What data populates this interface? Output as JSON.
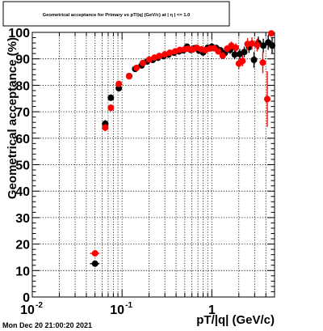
{
  "chart_data": {
    "type": "scatter",
    "title": "Geometrical acceptance for Primary vs pT/|q| (GeV/c) at | η | <= 1.0",
    "xlabel": "pT/|q| (GeV/c)",
    "ylabel": "Geometrical acceptance (%)",
    "x_scale": "log",
    "xlim": [
      0.01,
      5.0
    ],
    "ylim": [
      0,
      100
    ],
    "x_ticks": [
      {
        "value": 0.01,
        "label": "10",
        "exp": "-2"
      },
      {
        "value": 0.1,
        "label": "10",
        "exp": "-1"
      },
      {
        "value": 1,
        "label": "1",
        "exp": ""
      }
    ],
    "y_ticks": [
      "0",
      "10",
      "20",
      "30",
      "40",
      "50",
      "60",
      "70",
      "80",
      "90",
      "100"
    ],
    "grid": true,
    "series": [
      {
        "color": "#000000",
        "points": [
          {
            "x": 0.05,
            "y": 12.6,
            "xerr": 0.006,
            "yerr": 0.9
          },
          {
            "x": 0.065,
            "y": 65.5,
            "xerr": 0.003,
            "yerr": 1.4
          },
          {
            "x": 0.075,
            "y": 75.3,
            "xerr": 0.003,
            "yerr": 1.2
          },
          {
            "x": 0.092,
            "y": 78.9,
            "xerr": 0.004,
            "yerr": 1.0
          },
          {
            "x": 0.12,
            "y": 83.5,
            "yerr": 0.8
          },
          {
            "x": 0.14,
            "y": 86.2,
            "yerr": 0.8
          },
          {
            "x": 0.165,
            "y": 87.5,
            "yerr": 0.8
          },
          {
            "x": 0.19,
            "y": 89.0,
            "yerr": 0.7
          },
          {
            "x": 0.22,
            "y": 89.6,
            "yerr": 0.7
          },
          {
            "x": 0.25,
            "y": 90.4,
            "yerr": 0.7
          },
          {
            "x": 0.29,
            "y": 91.0,
            "yerr": 0.7
          },
          {
            "x": 0.33,
            "y": 91.6,
            "yerr": 0.7
          },
          {
            "x": 0.38,
            "y": 92.3,
            "yerr": 0.7
          },
          {
            "x": 0.43,
            "y": 92.8,
            "yerr": 0.7
          },
          {
            "x": 0.48,
            "y": 93.2,
            "yerr": 0.7
          },
          {
            "x": 0.53,
            "y": 94.6,
            "yerr": 0.8
          },
          {
            "x": 0.58,
            "y": 93.4,
            "yerr": 0.8
          },
          {
            "x": 0.64,
            "y": 94.0,
            "yerr": 0.8
          },
          {
            "x": 0.72,
            "y": 93.1,
            "yerr": 0.9
          },
          {
            "x": 0.8,
            "y": 92.4,
            "yerr": 1.0
          },
          {
            "x": 0.9,
            "y": 94.2,
            "yerr": 1.0
          },
          {
            "x": 1.0,
            "y": 94.6,
            "yerr": 1.1
          },
          {
            "x": 1.12,
            "y": 94.1,
            "yerr": 1.2
          },
          {
            "x": 1.25,
            "y": 93.2,
            "yerr": 1.3
          },
          {
            "x": 1.4,
            "y": 92.2,
            "yerr": 1.4
          },
          {
            "x": 1.6,
            "y": 93.4,
            "yerr": 1.5
          },
          {
            "x": 1.8,
            "y": 91.6,
            "yerr": 1.7
          },
          {
            "x": 2.05,
            "y": 91.8,
            "yerr": 1.9
          },
          {
            "x": 2.3,
            "y": 92.6,
            "yerr": 2.0
          },
          {
            "x": 2.6,
            "y": 94.4,
            "yerr": 2.2
          },
          {
            "x": 2.95,
            "y": 89.6,
            "yerr": 3.0
          },
          {
            "x": 3.3,
            "y": 96.0,
            "yerr": 2.4
          },
          {
            "x": 3.75,
            "y": 95.0,
            "yerr": 2.6
          },
          {
            "x": 4.25,
            "y": 96.2,
            "yerr": 2.8
          },
          {
            "x": 4.7,
            "y": 95.0,
            "yerr": 3.0
          }
        ]
      },
      {
        "color": "#ff0000",
        "points": [
          {
            "x": 0.05,
            "y": 16.5,
            "xerr": 0.006,
            "yerr": 0.9
          },
          {
            "x": 0.065,
            "y": 64.0,
            "xerr": 0.003,
            "yerr": 1.4
          },
          {
            "x": 0.075,
            "y": 71.5,
            "xerr": 0.003,
            "yerr": 1.3
          },
          {
            "x": 0.092,
            "y": 80.5,
            "xerr": 0.004,
            "yerr": 1.0
          },
          {
            "x": 0.12,
            "y": 83.4,
            "yerr": 0.8
          },
          {
            "x": 0.145,
            "y": 86.6,
            "yerr": 0.8
          },
          {
            "x": 0.17,
            "y": 88.4,
            "yerr": 0.8
          },
          {
            "x": 0.2,
            "y": 89.7,
            "yerr": 0.7
          },
          {
            "x": 0.23,
            "y": 90.5,
            "yerr": 0.7
          },
          {
            "x": 0.26,
            "y": 91.1,
            "yerr": 0.7
          },
          {
            "x": 0.3,
            "y": 91.7,
            "yerr": 0.7
          },
          {
            "x": 0.34,
            "y": 92.3,
            "yerr": 0.7
          },
          {
            "x": 0.39,
            "y": 92.8,
            "yerr": 0.7
          },
          {
            "x": 0.44,
            "y": 93.4,
            "yerr": 0.7
          },
          {
            "x": 0.5,
            "y": 93.6,
            "yerr": 0.7
          },
          {
            "x": 0.55,
            "y": 93.8,
            "yerr": 0.8
          },
          {
            "x": 0.61,
            "y": 93.5,
            "yerr": 0.8
          },
          {
            "x": 0.68,
            "y": 94.2,
            "yerr": 0.8
          },
          {
            "x": 0.76,
            "y": 93.6,
            "yerr": 0.9
          },
          {
            "x": 0.85,
            "y": 93.3,
            "yerr": 1.0
          },
          {
            "x": 0.95,
            "y": 93.9,
            "yerr": 1.0
          },
          {
            "x": 1.06,
            "y": 94.0,
            "yerr": 1.1
          },
          {
            "x": 1.18,
            "y": 92.8,
            "yerr": 1.2
          },
          {
            "x": 1.32,
            "y": 91.2,
            "yerr": 1.3
          },
          {
            "x": 1.48,
            "y": 93.8,
            "yerr": 1.4
          },
          {
            "x": 1.65,
            "y": 95.0,
            "yerr": 1.5
          },
          {
            "x": 1.85,
            "y": 94.2,
            "yerr": 1.7
          },
          {
            "x": 2.0,
            "y": 88.2,
            "yerr": 2.0
          },
          {
            "x": 2.2,
            "y": 89.2,
            "yerr": 2.0
          },
          {
            "x": 2.5,
            "y": 95.6,
            "yerr": 2.2
          },
          {
            "x": 2.8,
            "y": 95.8,
            "yerr": 2.3
          },
          {
            "x": 3.2,
            "y": 95.2,
            "yerr": 2.4
          },
          {
            "x": 3.7,
            "y": 88.6,
            "yerr": 4.0
          },
          {
            "x": 4.15,
            "y": 74.8,
            "yerr": 10.5
          },
          {
            "x": 4.6,
            "y": 99.6,
            "yerr": 1.0
          }
        ]
      }
    ]
  },
  "timestamp": "Mon Dec 20 21:00:20 2021"
}
